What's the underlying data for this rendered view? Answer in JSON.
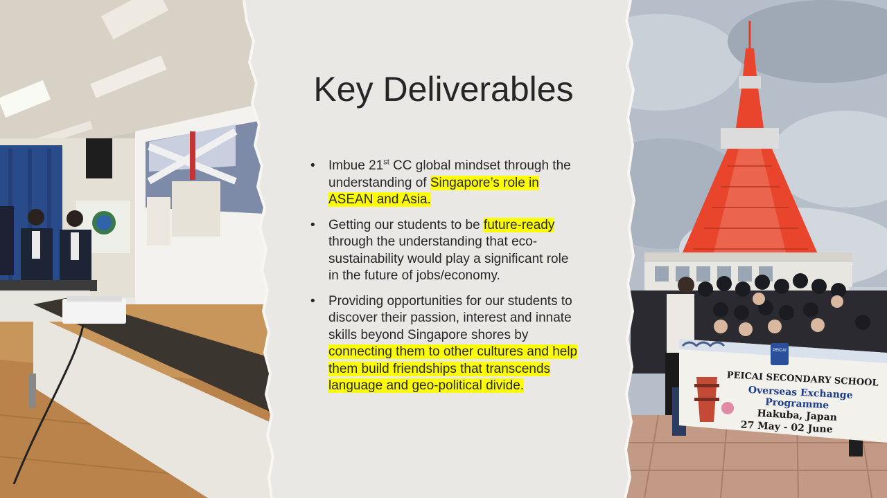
{
  "slide": {
    "title": "Key Deliverables",
    "bullets": [
      {
        "parts": [
          {
            "text": "Imbue 21",
            "hl": false
          },
          {
            "text": "st",
            "sup": true
          },
          {
            "text": " CC global mindset through the understanding of ",
            "hl": false
          },
          {
            "text": "Singapore’s role in ASEAN and Asia.",
            "hl": true
          }
        ]
      },
      {
        "parts": [
          {
            "text": "Getting our students to be ",
            "hl": false
          },
          {
            "text": "future-ready",
            "hl": true
          },
          {
            "text": " through the understanding that eco-sustainability would play a significant role in the future of jobs/economy.",
            "hl": false
          }
        ]
      },
      {
        "parts": [
          {
            "text": "Providing opportunities for our students to discover their passion, interest and innate skills beyond Singapore shores by ",
            "hl": false
          },
          {
            "text": "connecting them to other cultures and help them build friendships that transcends language and geo-political divide.",
            "hl": true
          }
        ]
      }
    ],
    "bullet_glyph": "•",
    "banner": {
      "school": "PEICAI SECONDARY SCHOOL",
      "programme_line1": "Overseas Exchange",
      "programme_line2": "Programme",
      "location": "Hakuba, Japan",
      "dates": "27 May - 02 June",
      "crest": "PEICAI"
    },
    "colors": {
      "highlight": "#ffff00",
      "text": "#262626",
      "paper": "#e9e8e5",
      "tower": "#e8452c"
    }
  }
}
